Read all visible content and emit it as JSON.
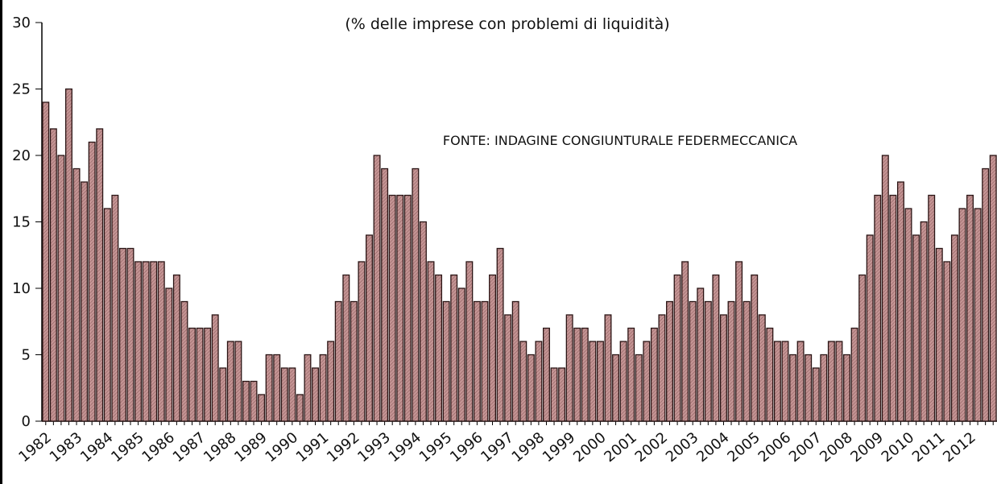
{
  "chart_data": {
    "type": "bar",
    "title": "(% delle imprese con problemi di liquidità)",
    "annotation": "FONTE: INDAGINE CONGIUNTURALE FEDERMECCANICA",
    "categories": [
      "1982",
      null,
      null,
      null,
      "1983",
      null,
      null,
      null,
      "1984",
      null,
      null,
      null,
      "1985",
      null,
      null,
      null,
      "1986",
      null,
      null,
      null,
      "1987",
      null,
      null,
      null,
      "1988",
      null,
      null,
      null,
      "1989",
      null,
      null,
      null,
      "1990",
      null,
      null,
      null,
      "1991",
      null,
      null,
      null,
      "1992",
      null,
      null,
      null,
      "1993",
      null,
      null,
      null,
      "1994",
      null,
      null,
      null,
      "1995",
      null,
      null,
      null,
      "1996",
      null,
      null,
      null,
      "1997",
      null,
      null,
      null,
      "1998",
      null,
      null,
      null,
      "1999",
      null,
      null,
      null,
      "2000",
      null,
      null,
      null,
      "2001",
      null,
      null,
      null,
      "2002",
      null,
      null,
      null,
      "2003",
      null,
      null,
      null,
      "2004",
      null,
      null,
      null,
      "2005",
      null,
      null,
      null,
      "2006",
      null,
      null,
      null,
      "2007",
      null,
      null,
      null,
      "2008",
      null,
      null,
      null,
      "2009",
      null,
      null,
      null,
      "2010",
      null,
      null,
      null,
      "2011",
      null,
      null,
      null,
      "2012",
      null,
      null,
      null
    ],
    "values": [
      24,
      22,
      20,
      25,
      19,
      18,
      21,
      22,
      16,
      17,
      13,
      13,
      12,
      12,
      12,
      12,
      10,
      11,
      9,
      7,
      7,
      7,
      8,
      4,
      6,
      6,
      3,
      3,
      2,
      5,
      5,
      4,
      4,
      2,
      5,
      4,
      5,
      6,
      9,
      11,
      9,
      12,
      14,
      20,
      19,
      17,
      17,
      17,
      19,
      15,
      12,
      11,
      9,
      11,
      10,
      12,
      9,
      9,
      11,
      13,
      8,
      9,
      6,
      5,
      6,
      7,
      4,
      4,
      8,
      7,
      7,
      6,
      6,
      8,
      5,
      6,
      7,
      5,
      6,
      7,
      8,
      9,
      11,
      12,
      9,
      10,
      9,
      11,
      8,
      9,
      12,
      9,
      11,
      8,
      7,
      6,
      6,
      5,
      6,
      5,
      4,
      5,
      6,
      6,
      5,
      7,
      11,
      14,
      17,
      20,
      17,
      18,
      16,
      14,
      15,
      17,
      13,
      12,
      14,
      16,
      17,
      16,
      19,
      20
    ],
    "color": "#c49494",
    "ylim": [
      0,
      30
    ],
    "yticks": [
      0,
      5,
      10,
      15,
      20,
      25,
      30
    ],
    "grid": false
  }
}
